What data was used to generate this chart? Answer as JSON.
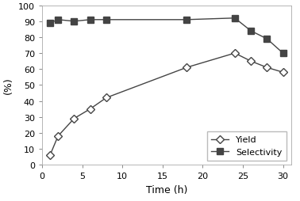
{
  "yield_x": [
    1,
    2,
    4,
    6,
    8,
    18,
    24,
    26,
    28,
    30
  ],
  "yield_y": [
    6,
    18,
    29,
    35,
    42,
    61,
    70,
    65,
    61,
    58
  ],
  "selectivity_x": [
    1,
    2,
    4,
    6,
    8,
    18,
    24,
    26,
    28,
    30
  ],
  "selectivity_y": [
    89,
    91,
    90,
    91,
    91,
    91,
    92,
    84,
    79,
    70
  ],
  "xlabel": "Time (h)",
  "ylabel": "(%)",
  "xlim": [
    0,
    31
  ],
  "ylim": [
    0,
    100
  ],
  "xticks": [
    0,
    5,
    10,
    15,
    20,
    25,
    30
  ],
  "yticks": [
    0,
    10,
    20,
    30,
    40,
    50,
    60,
    70,
    80,
    90,
    100
  ],
  "yield_label": "Yield",
  "selectivity_label": "Selectivity",
  "line_color": "#444444",
  "yield_marker": "D",
  "selectivity_marker": "s",
  "legend_loc": "lower right",
  "markersize_yield": 5,
  "markersize_sel": 6,
  "linewidth": 1.0,
  "xlabel_fontsize": 9,
  "ylabel_fontsize": 9,
  "tick_fontsize": 8,
  "legend_fontsize": 8
}
